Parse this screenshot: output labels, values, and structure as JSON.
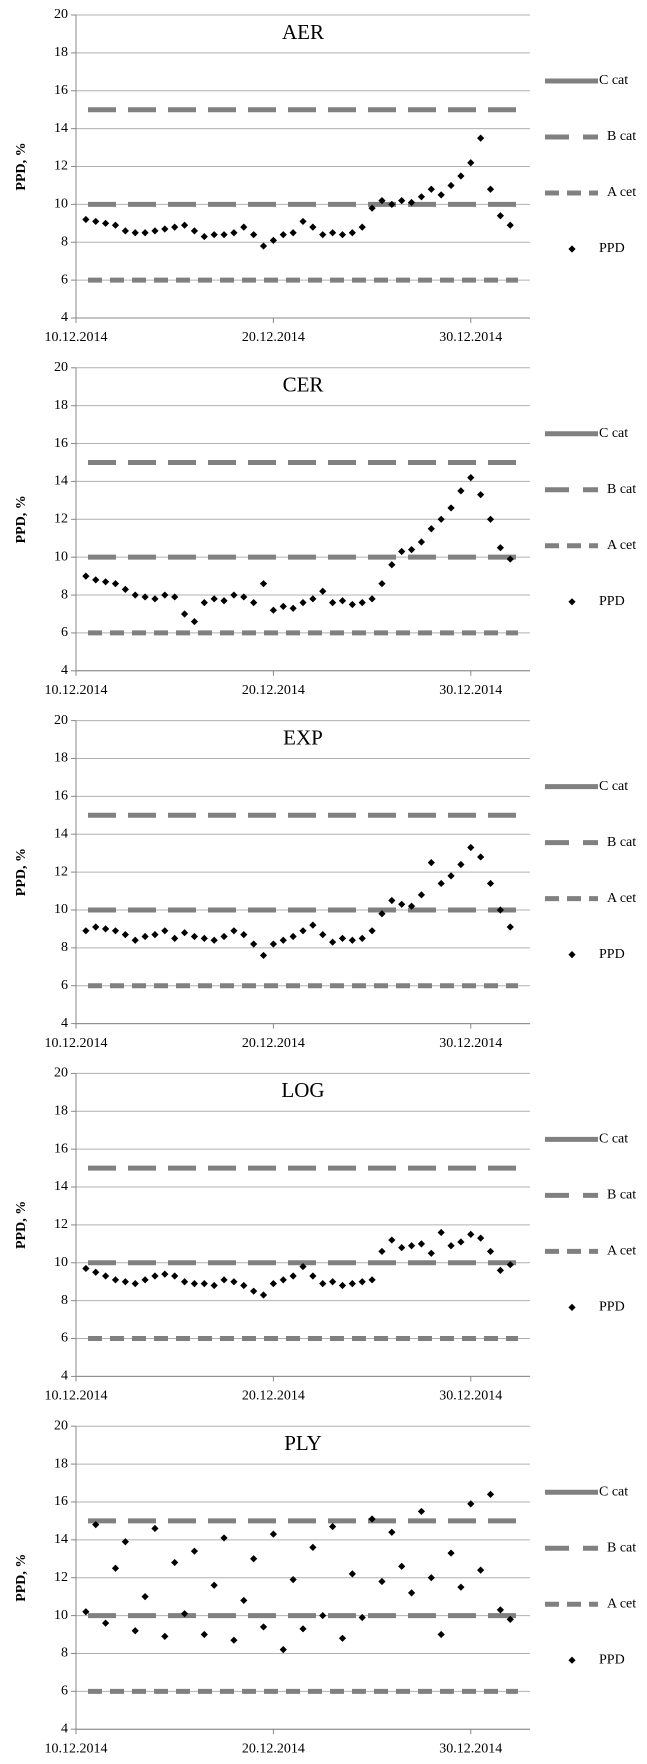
{
  "chart_data": [
    {
      "type": "scatter",
      "title": "AER",
      "ylabel": "PPD, %",
      "xlim": [
        10,
        33
      ],
      "ylim": [
        4,
        20
      ],
      "xticks": [
        {
          "value": 10,
          "label": "10.12.2014"
        },
        {
          "value": 20,
          "label": "20.12.2014"
        },
        {
          "value": 30,
          "label": "30.12.2014"
        }
      ],
      "yticks": [
        4,
        6,
        8,
        10,
        12,
        14,
        16,
        18,
        20
      ],
      "grid": true,
      "lines": [
        {
          "name": "C cat",
          "value": 15,
          "color": "#808080"
        },
        {
          "name": "B cat",
          "value": 10,
          "color": "#808080"
        },
        {
          "name": "A cet",
          "value": 6,
          "color": "#808080"
        }
      ],
      "series": [
        {
          "name": "PPD",
          "color": "#000000",
          "x": [
            10.5,
            11,
            11.5,
            12,
            12.5,
            13,
            13.5,
            14,
            14.5,
            15,
            15.5,
            16,
            16.5,
            17,
            17.5,
            18,
            18.5,
            19,
            19.5,
            20,
            20.5,
            21,
            21.5,
            22,
            22.5,
            23,
            23.5,
            24,
            24.5,
            25,
            25.5,
            26,
            26.5,
            27,
            27.5,
            28,
            28.5,
            29,
            29.5,
            30,
            30.5,
            31,
            31.5,
            32
          ],
          "values": [
            9.2,
            9.1,
            9.0,
            8.9,
            8.6,
            8.5,
            8.5,
            8.6,
            8.7,
            8.8,
            8.9,
            8.6,
            8.3,
            8.4,
            8.4,
            8.5,
            8.8,
            8.4,
            7.8,
            8.1,
            8.4,
            8.5,
            9.1,
            8.8,
            8.4,
            8.5,
            8.4,
            8.5,
            8.8,
            9.8,
            10.2,
            10.0,
            10.2,
            10.1,
            10.4,
            10.8,
            10.5,
            11.0,
            11.5,
            12.2,
            13.5,
            10.8,
            9.4,
            8.9
          ]
        }
      ]
    },
    {
      "type": "scatter",
      "title": "CER",
      "ylabel": "PPD, %",
      "xlim": [
        10,
        33
      ],
      "ylim": [
        4,
        20
      ],
      "xticks": [
        {
          "value": 10,
          "label": "10.12.2014"
        },
        {
          "value": 20,
          "label": "20.12.2014"
        },
        {
          "value": 30,
          "label": "30.12.2014"
        }
      ],
      "yticks": [
        4,
        6,
        8,
        10,
        12,
        14,
        16,
        18,
        20
      ],
      "grid": true,
      "lines": [
        {
          "name": "C cat",
          "value": 15,
          "color": "#808080"
        },
        {
          "name": "B cat",
          "value": 10,
          "color": "#808080"
        },
        {
          "name": "A cet",
          "value": 6,
          "color": "#808080"
        }
      ],
      "series": [
        {
          "name": "PPD",
          "color": "#000000",
          "x": [
            10.5,
            11,
            11.5,
            12,
            12.5,
            13,
            13.5,
            14,
            14.5,
            15,
            15.5,
            16,
            16.5,
            17,
            17.5,
            18,
            18.5,
            19,
            19.5,
            20,
            20.5,
            21,
            21.5,
            22,
            22.5,
            23,
            23.5,
            24,
            24.5,
            25,
            25.5,
            26,
            26.5,
            27,
            27.5,
            28,
            28.5,
            29,
            29.5,
            30,
            30.5,
            31,
            31.5,
            32
          ],
          "values": [
            9.0,
            8.8,
            8.7,
            8.6,
            8.3,
            8.0,
            7.9,
            7.8,
            8.0,
            7.9,
            7.0,
            6.6,
            7.6,
            7.8,
            7.7,
            8.0,
            7.9,
            7.6,
            8.6,
            7.2,
            7.4,
            7.3,
            7.6,
            7.8,
            8.2,
            7.6,
            7.7,
            7.5,
            7.6,
            7.8,
            8.6,
            9.6,
            10.3,
            10.4,
            10.8,
            11.5,
            12.0,
            12.6,
            13.5,
            14.2,
            13.3,
            12.0,
            10.5,
            9.9
          ]
        }
      ]
    },
    {
      "type": "scatter",
      "title": "EXP",
      "ylabel": "PPD, %",
      "xlim": [
        10,
        33
      ],
      "ylim": [
        4,
        20
      ],
      "xticks": [
        {
          "value": 10,
          "label": "10.12.2014"
        },
        {
          "value": 20,
          "label": "20.12.2014"
        },
        {
          "value": 30,
          "label": "30.12.2014"
        }
      ],
      "yticks": [
        4,
        6,
        8,
        10,
        12,
        14,
        16,
        18,
        20
      ],
      "grid": true,
      "lines": [
        {
          "name": "C cat",
          "value": 15,
          "color": "#808080"
        },
        {
          "name": "B cat",
          "value": 10,
          "color": "#808080"
        },
        {
          "name": "A cet",
          "value": 6,
          "color": "#808080"
        }
      ],
      "series": [
        {
          "name": "PPD",
          "color": "#000000",
          "x": [
            10.5,
            11,
            11.5,
            12,
            12.5,
            13,
            13.5,
            14,
            14.5,
            15,
            15.5,
            16,
            16.5,
            17,
            17.5,
            18,
            18.5,
            19,
            19.5,
            20,
            20.5,
            21,
            21.5,
            22,
            22.5,
            23,
            23.5,
            24,
            24.5,
            25,
            25.5,
            26,
            26.5,
            27,
            27.5,
            28,
            28.5,
            29,
            29.5,
            30,
            30.5,
            31,
            31.5,
            32
          ],
          "values": [
            8.9,
            9.1,
            9.0,
            8.9,
            8.7,
            8.4,
            8.6,
            8.7,
            8.9,
            8.5,
            8.8,
            8.6,
            8.5,
            8.4,
            8.6,
            8.9,
            8.7,
            8.2,
            7.6,
            8.2,
            8.4,
            8.6,
            8.9,
            9.2,
            8.7,
            8.3,
            8.5,
            8.4,
            8.5,
            8.9,
            9.8,
            10.5,
            10.3,
            10.2,
            10.8,
            12.5,
            11.4,
            11.8,
            12.4,
            13.3,
            12.8,
            11.4,
            10.0,
            9.1
          ]
        }
      ]
    },
    {
      "type": "scatter",
      "title": "LOG",
      "ylabel": "PPD, %",
      "xlim": [
        10,
        33
      ],
      "ylim": [
        4,
        20
      ],
      "xticks": [
        {
          "value": 10,
          "label": "10.12.2014"
        },
        {
          "value": 20,
          "label": "20.12.2014"
        },
        {
          "value": 30,
          "label": "30.12.2014"
        }
      ],
      "yticks": [
        4,
        6,
        8,
        10,
        12,
        14,
        16,
        18,
        20
      ],
      "grid": true,
      "lines": [
        {
          "name": "C cat",
          "value": 15,
          "color": "#808080"
        },
        {
          "name": "B cat",
          "value": 10,
          "color": "#808080"
        },
        {
          "name": "A cet",
          "value": 6,
          "color": "#808080"
        }
      ],
      "series": [
        {
          "name": "PPD",
          "color": "#000000",
          "x": [
            10.5,
            11,
            11.5,
            12,
            12.5,
            13,
            13.5,
            14,
            14.5,
            15,
            15.5,
            16,
            16.5,
            17,
            17.5,
            18,
            18.5,
            19,
            19.5,
            20,
            20.5,
            21,
            21.5,
            22,
            22.5,
            23,
            23.5,
            24,
            24.5,
            25,
            25.5,
            26,
            26.5,
            27,
            27.5,
            28,
            28.5,
            29,
            29.5,
            30,
            30.5,
            31,
            31.5,
            32
          ],
          "values": [
            9.7,
            9.5,
            9.3,
            9.1,
            9.0,
            8.9,
            9.1,
            9.3,
            9.4,
            9.3,
            9.0,
            8.9,
            8.9,
            8.8,
            9.1,
            9.0,
            8.8,
            8.5,
            8.3,
            8.9,
            9.1,
            9.3,
            9.8,
            9.3,
            8.9,
            9.0,
            8.8,
            8.9,
            9.0,
            9.1,
            10.6,
            11.2,
            10.8,
            10.9,
            11.0,
            10.5,
            11.6,
            10.9,
            11.1,
            11.5,
            11.3,
            10.6,
            9.6,
            9.9
          ]
        }
      ]
    },
    {
      "type": "scatter",
      "title": "PLY",
      "ylabel": "PPD, %",
      "xlim": [
        10,
        33
      ],
      "ylim": [
        4,
        20
      ],
      "xticks": [
        {
          "value": 10,
          "label": "10.12.2014"
        },
        {
          "value": 20,
          "label": "20.12.2014"
        },
        {
          "value": 30,
          "label": "30.12.2014"
        }
      ],
      "yticks": [
        4,
        6,
        8,
        10,
        12,
        14,
        16,
        18,
        20
      ],
      "grid": true,
      "lines": [
        {
          "name": "C cat",
          "value": 15,
          "color": "#808080"
        },
        {
          "name": "B cat",
          "value": 10,
          "color": "#808080"
        },
        {
          "name": "A cet",
          "value": 6,
          "color": "#808080"
        }
      ],
      "series": [
        {
          "name": "PPD",
          "color": "#000000",
          "x": [
            10.5,
            11,
            11.5,
            12,
            12.5,
            13,
            13.5,
            14,
            14.5,
            15,
            15.5,
            16,
            16.5,
            17,
            17.5,
            18,
            18.5,
            19,
            19.5,
            20,
            20.5,
            21,
            21.5,
            22,
            22.5,
            23,
            23.5,
            24,
            24.5,
            25,
            25.5,
            26,
            26.5,
            27,
            27.5,
            28,
            28.5,
            29,
            29.5,
            30,
            30.5,
            31,
            31.5,
            32
          ],
          "values": [
            10.2,
            14.8,
            9.6,
            12.5,
            13.9,
            9.2,
            11.0,
            14.6,
            8.9,
            12.8,
            10.1,
            13.4,
            9.0,
            11.6,
            14.1,
            8.7,
            10.8,
            13.0,
            9.4,
            14.3,
            8.2,
            11.9,
            9.3,
            13.6,
            10.0,
            14.7,
            8.8,
            12.2,
            9.9,
            15.1,
            11.8,
            14.4,
            12.6,
            11.2,
            15.5,
            12.0,
            9.0,
            13.3,
            11.5,
            15.9,
            12.4,
            16.4,
            10.3,
            9.8
          ]
        }
      ]
    }
  ]
}
